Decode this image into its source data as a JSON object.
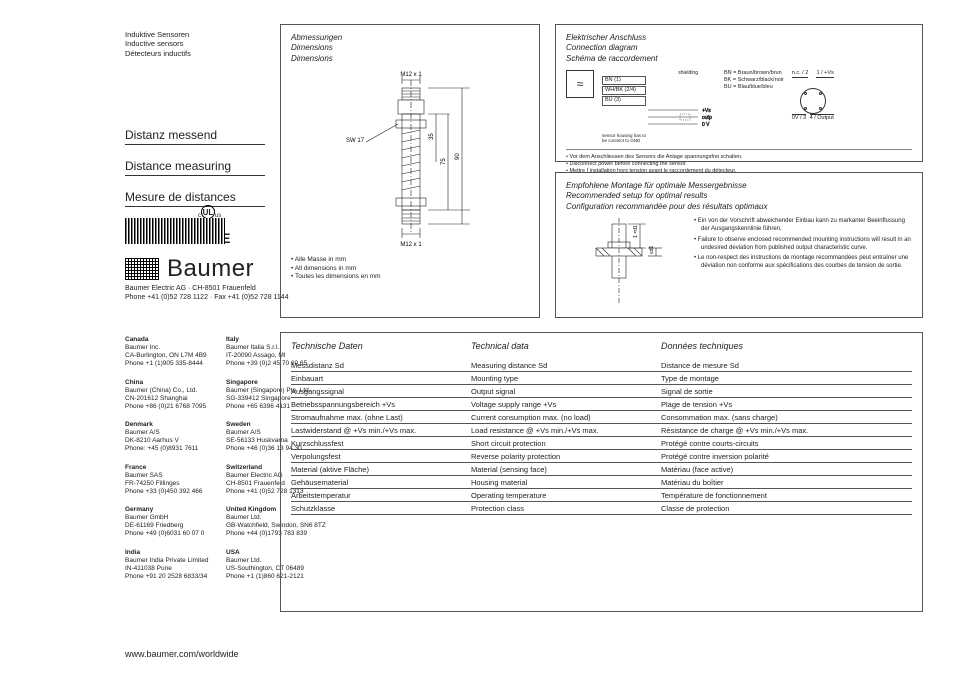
{
  "header": {
    "de": "Induktive Sensoren",
    "en": "Inductive sensors",
    "fr": "Détecteurs inductifs"
  },
  "titles": {
    "de": "Distanz messend",
    "en": "Distance measuring",
    "fr": "Mesure de distances"
  },
  "brand": {
    "name": "Baumer",
    "addr": "Baumer Electric AG · CH-8501 Frauenfeld",
    "phone": "Phone +41 (0)52 728 1122 · Fax +41 (0)52 728 1144",
    "url": "www.baumer.com/worldwide",
    "ul_sub": "LISTED",
    "ce": "CE"
  },
  "contacts": [
    {
      "country": "Canada",
      "l1": "Baumer Inc.",
      "l2": "CA-Burlington, ON L7M 4B9",
      "l3": "Phone +1 (1)905 335-8444"
    },
    {
      "country": "Italy",
      "l1": "Baumer Italia S.r.l.",
      "l2": "IT-20090 Assago, MI",
      "l3": "Phone +39 (0)2 45 70 60 65"
    },
    {
      "country": "China",
      "l1": "Baumer (China) Co., Ltd.",
      "l2": "CN-201612 Shanghai",
      "l3": "Phone +86 (0)21 6768 7095"
    },
    {
      "country": "Singapore",
      "l1": "Baumer (Singapore) Pte. Ltd.",
      "l2": "SG-339412 Singapore",
      "l3": "Phone +65 6396 4131"
    },
    {
      "country": "Denmark",
      "l1": "Baumer A/S",
      "l2": "DK-8210 Aarhus V",
      "l3": "Phone: +45 (0)8931 7611"
    },
    {
      "country": "Sweden",
      "l1": "Baumer A/S",
      "l2": "SE-56133 Huskvarna",
      "l3": "Phone +46 (0)36 13 94 30"
    },
    {
      "country": "France",
      "l1": "Baumer SAS",
      "l2": "FR-74250 Fillinges",
      "l3": "Phone +33 (0)450 392 466"
    },
    {
      "country": "Switzerland",
      "l1": "Baumer Electric AG",
      "l2": "CH-8501 Frauenfeld",
      "l3": "Phone +41 (0)52 728 1313"
    },
    {
      "country": "Germany",
      "l1": "Baumer GmbH",
      "l2": "DE-61169 Friedberg",
      "l3": "Phone +49 (0)6031 60 07 0"
    },
    {
      "country": "United Kingdom",
      "l1": "Baumer Ltd.",
      "l2": "GB-Watchfield, Swindon, SN6 8TZ",
      "l3": "Phone +44 (0)1793 783 839"
    },
    {
      "country": "India",
      "l1": "Baumer India Private Limited",
      "l2": "IN-411038 Pune",
      "l3": "Phone +91 20 2528 6833/34"
    },
    {
      "country": "USA",
      "l1": "Baumer Ltd.",
      "l2": "US-Southington, CT 06489",
      "l3": "Phone +1 (1)860 621-2121"
    }
  ],
  "dim": {
    "title_de": "Abmessungen",
    "title_en": "Dimensions",
    "title_fr": "Dimensions",
    "thread_top": "M12 x 1",
    "thread_bot": "M12 x 1",
    "sw": "SW 17",
    "h1": "35",
    "h2": "75",
    "h3": "90",
    "note_de": "Alle Masse in mm",
    "note_en": "All dimensions in mm",
    "note_fr": "Toutes les dimensions en mm"
  },
  "conn": {
    "title_de": "Elektrischer Anschluss",
    "title_en": "Connection diagram",
    "title_fr": "Schéma de raccordement",
    "bn": "BN (1)",
    "whbk": "WH/BK (2/4)",
    "bu": "BU (3)",
    "vs": "+Vs",
    "out": "output",
    "zv": "0 V",
    "legend_bn": "BN = Braun/brown/brun",
    "legend_bk": "BK = Schwarz/black/noir",
    "legend_bu": "BU = Blau/blue/bleu",
    "shield": "shielding",
    "gnd": "sensor housing has to\nbe connect to GND",
    "pin1": "1 / +Vs",
    "pin2": "n.c. / 2",
    "pin3": "0V / 3",
    "pin4": "4 / Output",
    "n_de": "Vor dem Anschliessen des Sensors die Anlage spannungsfrei schalten.",
    "n_en": "Disconnect power before connecting the sensor.",
    "n_fr": "Mettre l´installation hors tension avant le raccordement du détecteur."
  },
  "setup": {
    "title_de": "Empfohlene Montage für optimale Messergebnisse",
    "title_en": "Recommended setup for optimal results",
    "title_fr": "Configuration recommandée pour des résultats optimaux",
    "d1": "1 ×d1",
    "d2": "≤d1",
    "n_de": "Ein von der Vorschrift abweichender Einbau kann zu markanter Beeinflussung der Ausgangskennlinie führen.",
    "n_en": "Failure to observe enclosed recommended mounting instructions will result in an undesired deviation from published output characteristic curve.",
    "n_fr": "Le non-respect  des instructions de montage recommandées peut entraîner une déviation non conforme aux spécifications des courbes de tension de sortie."
  },
  "tech": {
    "h_de": "Technische Daten",
    "h_en": "Technical data",
    "h_fr": "Données techniques",
    "rows": [
      {
        "de": "Messdistanz Sd",
        "en": "Measuring distance Sd",
        "fr": "Distance de mesure Sd"
      },
      {
        "de": "Einbauart",
        "en": "Mounting type",
        "fr": "Type de montage"
      },
      {
        "de": "Ausgangssignal",
        "en": "Output signal",
        "fr": "Signal de sortie"
      },
      {
        "de": "Betriebsspannungsbereich +Vs",
        "en": "Voltage supply range +Vs",
        "fr": "Plage de tension +Vs"
      },
      {
        "de": "Stromaufnahme max. (ohne Last)",
        "en": "Current consumption max. (no load)",
        "fr": "Consommation max. (sans charge)"
      },
      {
        "de": "Lastwiderstand @ +Vs min./+Vs max.",
        "en": "Load resistance @ +Vs min./+Vs max.",
        "fr": "Résistance de charge @ +Vs min./+Vs max."
      },
      {
        "de": "Kurzschlussfest",
        "en": "Short circuit protection",
        "fr": "Protégé contre courts-circuits"
      },
      {
        "de": "Verpolungsfest",
        "en": "Reverse polarity protection",
        "fr": "Protégé contre inversion polarité"
      },
      {
        "de": "Material (aktive Fläche)",
        "en": "Material (sensing face)",
        "fr": "Matériau (face active)"
      },
      {
        "de": "Gehäusematerial",
        "en": "Housing material",
        "fr": "Matériau du boîtier"
      },
      {
        "de": "Arbeitstemperatur",
        "en": "Operating temperature",
        "fr": "Température de fonctionnement"
      },
      {
        "de": "Schutzklasse",
        "en": "Protection class",
        "fr": "Classe de protection"
      }
    ]
  }
}
